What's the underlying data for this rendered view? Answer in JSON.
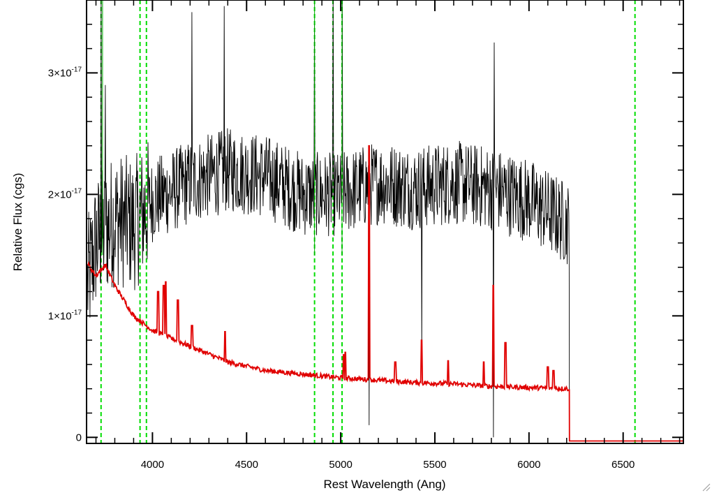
{
  "chart_data": {
    "type": "line",
    "xlabel": "Rest Wavelength (Ang)",
    "ylabel": "Relative Flux (cgs)",
    "xlim": [
      3650,
      6820
    ],
    "ylim": [
      -5e-19,
      3.6e-17
    ],
    "x_ticks": [
      {
        "value": 4000,
        "label": "4000"
      },
      {
        "value": 4500,
        "label": "4500"
      },
      {
        "value": 5000,
        "label": "5000"
      },
      {
        "value": 5500,
        "label": "5500"
      },
      {
        "value": 6000,
        "label": "6000"
      },
      {
        "value": 6500,
        "label": "6500"
      }
    ],
    "y_ticks": [
      {
        "value": 0,
        "label": "0",
        "exponent": ""
      },
      {
        "value": 1e-17,
        "label": "1×10",
        "exponent": "-17"
      },
      {
        "value": 2e-17,
        "label": "2×10",
        "exponent": "-17"
      },
      {
        "value": 3e-17,
        "label": "3×10",
        "exponent": "-17"
      }
    ],
    "grid": false,
    "series": [
      {
        "role": "observed spectrum",
        "color": "#000000",
        "x_range": [
          3655,
          6215
        ],
        "continuum": [
          [
            3655,
            1.25e-17
          ],
          [
            3700,
            1.6e-17
          ],
          [
            3800,
            1.8e-17
          ],
          [
            3900,
            1.75e-17
          ],
          [
            4000,
            1.95e-17
          ],
          [
            4200,
            2.1e-17
          ],
          [
            4400,
            2.2e-17
          ],
          [
            4600,
            2.15e-17
          ],
          [
            4800,
            2e-17
          ],
          [
            5000,
            2e-17
          ],
          [
            5200,
            2.1e-17
          ],
          [
            5400,
            2.05e-17
          ],
          [
            5600,
            2.1e-17
          ],
          [
            5800,
            2.05e-17
          ],
          [
            6000,
            1.95e-17
          ],
          [
            6215,
            1.75e-17
          ]
        ],
        "noise_amplitude": 3.5e-18,
        "features": [
          [
            3727,
            3.6e-17
          ],
          [
            3750,
            2.9e-17
          ],
          [
            4210,
            3.5e-17
          ],
          [
            4380,
            3.55e-17
          ],
          [
            4861,
            3.4e-17
          ],
          [
            4960,
            3.6e-17
          ],
          [
            5007,
            3.6e-17
          ],
          [
            5150,
            1e-18
          ],
          [
            5430,
            7e-18
          ],
          [
            5810,
            0.0
          ],
          [
            5815,
            3.25e-17
          ]
        ],
        "drop_to_zero_at": 6215
      },
      {
        "role": "model / template",
        "color": "#e00000",
        "points": [
          [
            3655,
            1.43e-17
          ],
          [
            3700,
            1.33e-17
          ],
          [
            3750,
            1.42e-17
          ],
          [
            3800,
            1.25e-17
          ],
          [
            3900,
            1e-17
          ],
          [
            4000,
            8.8e-18
          ],
          [
            4200,
            7.5e-18
          ],
          [
            4400,
            6.2e-18
          ],
          [
            4600,
            5.5e-18
          ],
          [
            4800,
            5.2e-18
          ],
          [
            5000,
            4.9e-18
          ],
          [
            5200,
            4.7e-18
          ],
          [
            5400,
            4.5e-18
          ],
          [
            5600,
            4.4e-18
          ],
          [
            5800,
            4.2e-18
          ],
          [
            6000,
            4.1e-18
          ],
          [
            6215,
            4e-18
          ]
        ],
        "emission_lines": [
          [
            4030,
            1.2e-17
          ],
          [
            4060,
            1.25e-17
          ],
          [
            4070,
            1.28e-17
          ],
          [
            4135,
            1.13e-17
          ],
          [
            4210,
            9.2e-18
          ],
          [
            4385,
            8.7e-18
          ],
          [
            5015,
            6.8e-18
          ],
          [
            5025,
            7e-18
          ],
          [
            5150,
            2.4e-17
          ],
          [
            5290,
            6.2e-18
          ],
          [
            5430,
            8e-18
          ],
          [
            5570,
            6.3e-18
          ],
          [
            5760,
            6.2e-18
          ],
          [
            5810,
            1.25e-17
          ],
          [
            5875,
            7.8e-18
          ],
          [
            6100,
            5.8e-18
          ],
          [
            6130,
            5.5e-18
          ]
        ],
        "after_cutoff_value": -3e-19,
        "cutoff_at": 6215
      }
    ],
    "reference_lines": {
      "color": "#00dd00",
      "style": "dashed",
      "x": [
        3727,
        3934,
        3968,
        4861,
        4959,
        5007,
        6563
      ]
    },
    "solid_green_lines": {
      "color": "#00aa00",
      "x": [
        3735,
        4861,
        5007
      ]
    }
  }
}
